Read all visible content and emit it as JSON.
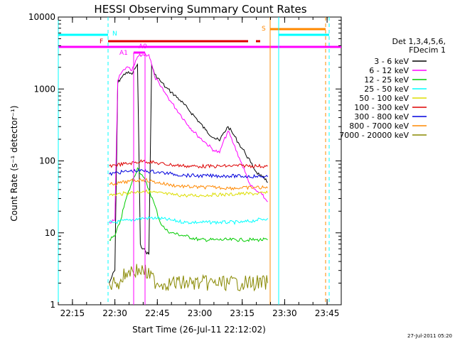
{
  "chart_data": {
    "type": "line",
    "title": "HESSI Observing Summary Count Rates",
    "xlabel": "Start Time (26-Jul-11 22:12:02)",
    "ylabel": "Count Rate (s⁻¹ detector⁻¹)",
    "y_scale": "log",
    "ylim": [
      1,
      10000
    ],
    "xlim": [
      "22:10",
      "23:50"
    ],
    "x_ticks": [
      "22:15",
      "22:30",
      "22:45",
      "23:00",
      "23:15",
      "23:30",
      "23:45"
    ],
    "y_ticks": [
      "1",
      "10",
      "100",
      "1000",
      "10000"
    ],
    "legend_title": [
      "Det 1,3,4,5,6,",
      "FDecim 1"
    ],
    "legend_position": "right",
    "timestamp": "27-Jul-2011 05:20",
    "series": [
      {
        "name": "3 - 6 keV",
        "color": "#000000",
        "x": [
          "22:28",
          "22:29",
          "22:30",
          "22:31",
          "22:32",
          "22:34",
          "22:36",
          "22:37",
          "22:38",
          "22:39",
          "22:40",
          "22:42",
          "22:43",
          "22:44",
          "22:46",
          "22:48",
          "22:50",
          "22:53",
          "22:56",
          "22:59",
          "23:02",
          "23:05",
          "23:07",
          "23:08",
          "23:10",
          "23:12",
          "23:14",
          "23:16",
          "23:18",
          "23:20",
          "23:22",
          "23:23",
          "23:24"
        ],
        "y": [
          2,
          2.5,
          3,
          1200,
          1400,
          1700,
          1600,
          1900,
          2200,
          7,
          6,
          5,
          2200,
          1600,
          1300,
          1050,
          900,
          700,
          520,
          380,
          270,
          210,
          190,
          230,
          300,
          230,
          170,
          130,
          95,
          70,
          60,
          55,
          50
        ]
      },
      {
        "name": "6 - 12 keV",
        "color": "#ff00ff",
        "x": [
          "22:28",
          "22:30",
          "22:31",
          "22:32",
          "22:34",
          "22:36",
          "22:37",
          "22:38",
          "22:40",
          "22:42",
          "22:43",
          "22:44",
          "22:46",
          "22:48",
          "22:50",
          "22:53",
          "22:56",
          "22:59",
          "23:02",
          "23:05",
          "23:07",
          "23:08",
          "23:10",
          "23:12",
          "23:14",
          "23:16",
          "23:18",
          "23:20",
          "23:22",
          "23:23",
          "23:24"
        ],
        "y": [
          14,
          15,
          1300,
          1600,
          2000,
          1800,
          2200,
          2800,
          3000,
          3000,
          2200,
          1500,
          1100,
          850,
          650,
          450,
          310,
          230,
          180,
          140,
          130,
          170,
          260,
          170,
          110,
          70,
          45,
          38,
          34,
          30,
          27
        ]
      },
      {
        "name": "12 - 25 keV",
        "color": "#00cc00",
        "x": [
          "22:28",
          "22:30",
          "22:32",
          "22:34",
          "22:36",
          "22:38",
          "22:40",
          "22:42",
          "22:44",
          "22:46",
          "22:48",
          "22:50",
          "22:55",
          "23:00",
          "23:05",
          "23:10",
          "23:15",
          "23:20",
          "23:24"
        ],
        "y": [
          8,
          9,
          15,
          30,
          50,
          80,
          60,
          40,
          25,
          14,
          11,
          10,
          9,
          8,
          8,
          8,
          8,
          8,
          8
        ]
      },
      {
        "name": "25 - 50 keV",
        "color": "#00ffff",
        "x": [
          "22:28",
          "22:30",
          "22:35",
          "22:40",
          "22:45",
          "22:50",
          "22:55",
          "23:00",
          "23:05",
          "23:10",
          "23:15",
          "23:20",
          "23:24"
        ],
        "y": [
          14,
          14,
          15,
          16,
          16,
          15,
          14,
          14,
          14,
          14,
          14,
          15,
          16
        ]
      },
      {
        "name": "50 - 100 keV",
        "color": "#dddd00",
        "x": [
          "22:28",
          "22:30",
          "22:35",
          "22:40",
          "22:45",
          "22:50",
          "22:55",
          "23:00",
          "23:05",
          "23:10",
          "23:15",
          "23:20",
          "23:24"
        ],
        "y": [
          33,
          34,
          36,
          38,
          36,
          34,
          33,
          33,
          34,
          34,
          35,
          35,
          36
        ]
      },
      {
        "name": "100 - 300 keV",
        "color": "#dd0000",
        "x": [
          "22:28",
          "22:30",
          "22:35",
          "22:40",
          "22:45",
          "22:50",
          "22:55",
          "23:00",
          "23:05",
          "23:10",
          "23:15",
          "23:20",
          "23:24"
        ],
        "y": [
          85,
          88,
          92,
          100,
          93,
          88,
          85,
          84,
          84,
          85,
          86,
          85,
          84
        ]
      },
      {
        "name": "300 - 800 keV",
        "color": "#0000dd",
        "x": [
          "22:28",
          "22:30",
          "22:35",
          "22:40",
          "22:45",
          "22:50",
          "22:55",
          "23:00",
          "23:05",
          "23:10",
          "23:15",
          "23:20",
          "23:24"
        ],
        "y": [
          65,
          68,
          72,
          73,
          70,
          66,
          63,
          62,
          62,
          62,
          61,
          61,
          60
        ]
      },
      {
        "name": "800 - 7000 keV",
        "color": "#ff8800",
        "x": [
          "22:28",
          "22:30",
          "22:35",
          "22:40",
          "22:45",
          "22:50",
          "22:55",
          "23:00",
          "23:05",
          "23:10",
          "23:15",
          "23:20",
          "23:24"
        ],
        "y": [
          47,
          48,
          52,
          55,
          50,
          46,
          44,
          43,
          43,
          42,
          42,
          43,
          42
        ]
      },
      {
        "name": "7000 - 20000 keV",
        "color": "#888800",
        "x": [
          "22:28",
          "22:30",
          "22:31",
          "22:35",
          "22:40",
          "22:45",
          "22:50",
          "22:55",
          "23:00",
          "23:05",
          "23:10",
          "23:15",
          "23:20",
          "23:24"
        ],
        "y": [
          2,
          2,
          2,
          3,
          3,
          2,
          2,
          2,
          2,
          2,
          2,
          2,
          2,
          2
        ]
      }
    ],
    "annotations": [
      {
        "label": "N",
        "color": "#00ffff"
      },
      {
        "label": "F",
        "color": "#dd0000"
      },
      {
        "label": "A1",
        "color": "#ff00ff"
      },
      {
        "label": "A0",
        "color": "#ff00ff"
      },
      {
        "label": "S",
        "color": "#ff8800"
      }
    ]
  }
}
